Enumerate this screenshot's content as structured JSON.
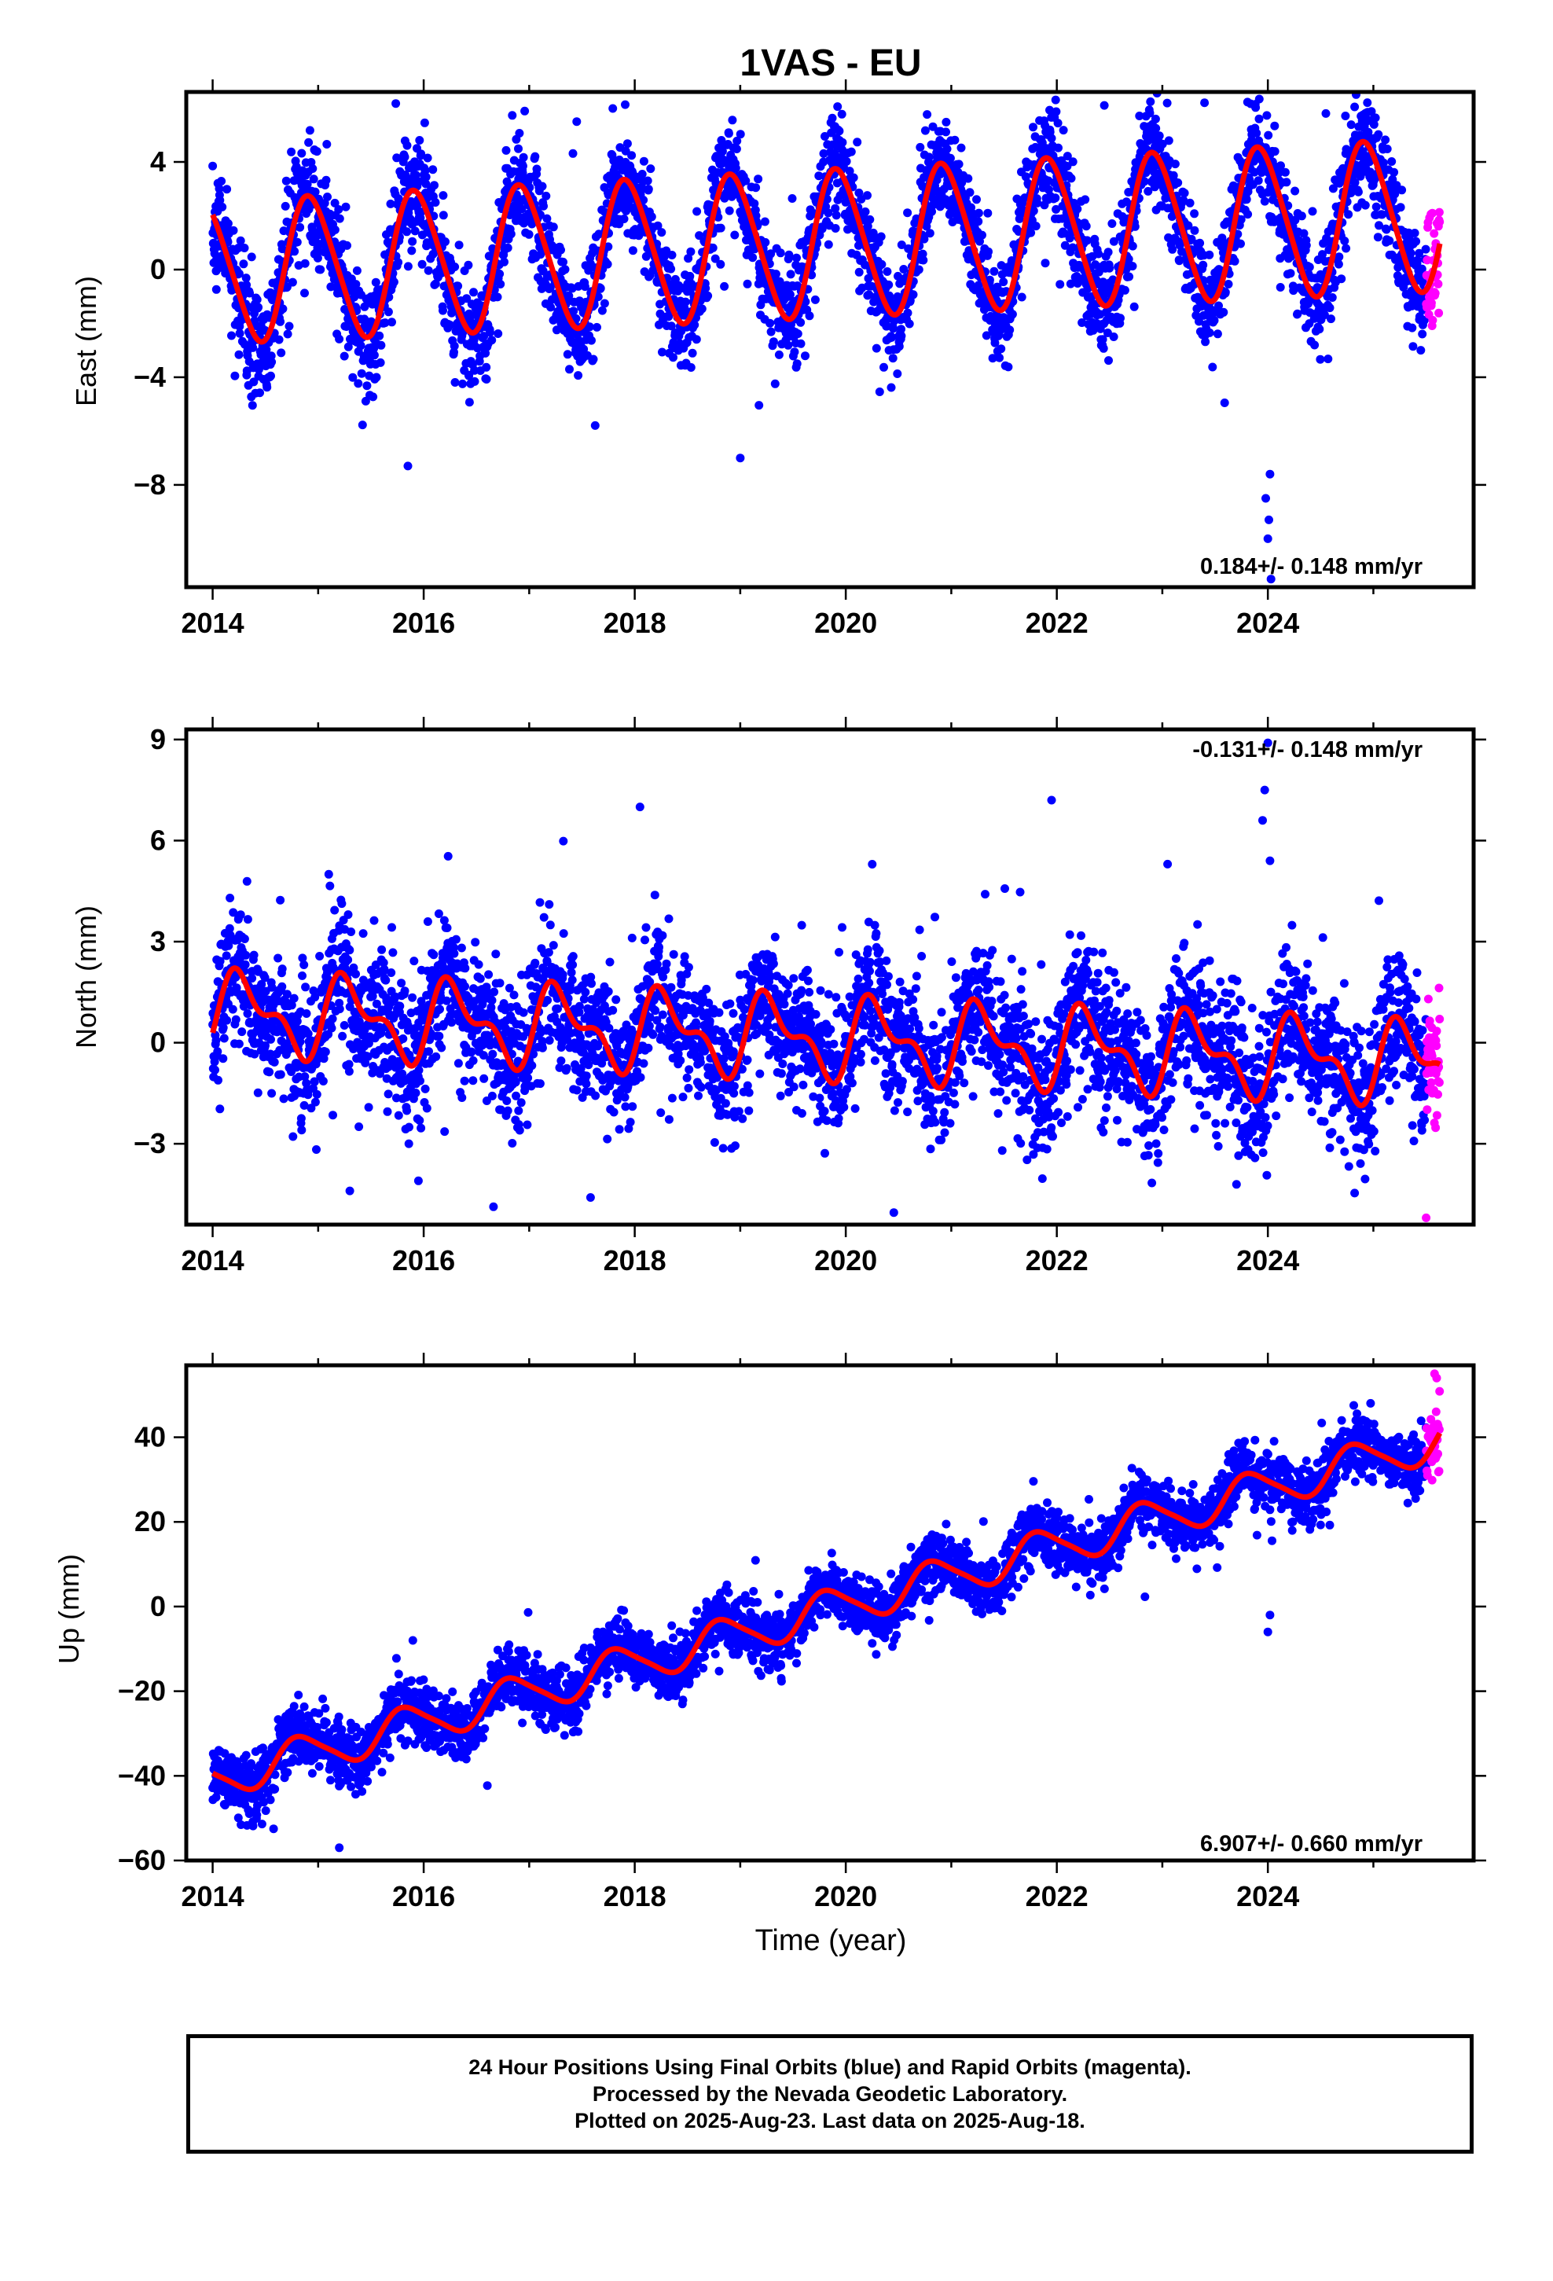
{
  "title": "1VAS - EU",
  "xlabel": "Time (year)",
  "colors": {
    "final": "#0000ff",
    "rapid": "#ff00ff",
    "model": "#ff0000",
    "axis": "#000000"
  },
  "caption": {
    "line1": "24 Hour Positions Using Final Orbits (blue) and Rapid Orbits (magenta).",
    "line2": "Processed by the Nevada Geodetic Laboratory.",
    "line3": "Plotted on 2025-Aug-23. Last data on 2025-Aug-18."
  },
  "chart_data": [
    {
      "type": "scatter",
      "component": "east",
      "ylabel": "East (mm)",
      "xlim": [
        2013.75,
        2025.95
      ],
      "ylim": [
        -11.8,
        6.6
      ],
      "xticks": [
        2014,
        2016,
        2018,
        2020,
        2022,
        2024
      ],
      "xtick_labels": [
        "2014",
        "2016",
        "2018",
        "2020",
        "2022",
        "2024"
      ],
      "yticks": [
        4,
        0,
        -4,
        -8
      ],
      "ytick_labels": [
        "4",
        "0",
        "−4",
        "−8"
      ],
      "rate_text": "0.184+/- 0.148 mm/yr",
      "rate_position": "bottom-right",
      "data_span": [
        2014.0,
        2025.63
      ],
      "rapid_start": 2025.5,
      "model": {
        "offset": -0.1,
        "rate": 0.184,
        "annual_amp": [
          2.6,
          2.8
        ],
        "annual_phase": 2.0,
        "semiannual_amp": 0.3,
        "noise_sd": 1.0
      },
      "outliers": [
        {
          "x": 2015.85,
          "y": -7.3
        },
        {
          "x": 2019.0,
          "y": -7.0
        },
        {
          "x": 2024.0,
          "y": -10.0
        },
        {
          "x": 2024.01,
          "y": -9.3
        },
        {
          "x": 2023.98,
          "y": -8.5
        },
        {
          "x": 2024.02,
          "y": -7.6
        },
        {
          "x": 2024.03,
          "y": -11.5
        },
        {
          "x": 2023.4,
          "y": 6.2
        },
        {
          "x": 2022.45,
          "y": 6.1
        },
        {
          "x": 2024.55,
          "y": 5.8
        },
        {
          "x": 2017.45,
          "y": 5.5
        }
      ]
    },
    {
      "type": "scatter",
      "component": "north",
      "ylabel": "North (mm)",
      "xlim": [
        2013.75,
        2025.95
      ],
      "ylim": [
        -5.4,
        9.3
      ],
      "xticks": [
        2014,
        2016,
        2018,
        2020,
        2022,
        2024
      ],
      "xtick_labels": [
        "2014",
        "2016",
        "2018",
        "2020",
        "2022",
        "2024"
      ],
      "yticks": [
        9,
        6,
        3,
        0,
        -3
      ],
      "ytick_labels": [
        "9",
        "6",
        "3",
        "0",
        "−3"
      ],
      "rate_text": "-0.131+/- 0.148 mm/yr",
      "rate_position": "top-right",
      "data_span": [
        2014.0,
        2025.63
      ],
      "rapid_start": 2025.5,
      "model": {
        "offset": 0.9,
        "rate": -0.131,
        "annual_amp": [
          1.0,
          1.0
        ],
        "annual_phase": -0.3,
        "semiannual_amp": 0.55,
        "noise_sd": 1.0
      },
      "outliers": [
        {
          "x": 2018.05,
          "y": 7.0
        },
        {
          "x": 2021.95,
          "y": 7.2
        },
        {
          "x": 2024.0,
          "y": 8.9
        },
        {
          "x": 2023.97,
          "y": 7.5
        },
        {
          "x": 2023.95,
          "y": 6.6
        },
        {
          "x": 2024.02,
          "y": 5.4
        },
        {
          "x": 2023.05,
          "y": 5.3
        },
        {
          "x": 2015.1,
          "y": 5.0
        },
        {
          "x": 2025.5,
          "y": -5.2
        },
        {
          "x": 2015.3,
          "y": -4.4
        },
        {
          "x": 2015.95,
          "y": -4.1
        }
      ]
    },
    {
      "type": "scatter",
      "component": "up",
      "ylabel": "Up (mm)",
      "xlim": [
        2013.75,
        2025.95
      ],
      "ylim": [
        -60,
        57
      ],
      "xticks": [
        2014,
        2016,
        2018,
        2020,
        2022,
        2024
      ],
      "xtick_labels": [
        "2014",
        "2016",
        "2018",
        "2020",
        "2022",
        "2024"
      ],
      "yticks": [
        40,
        20,
        0,
        -20,
        -40,
        -60
      ],
      "ytick_labels": [
        "40",
        "20",
        "0",
        "−20",
        "−40",
        "−60"
      ],
      "rate_text": "6.907+/- 0.660 mm/yr",
      "rate_position": "bottom-right",
      "data_span": [
        2014.0,
        2025.63
      ],
      "rapid_start": 2025.5,
      "model": {
        "offset": -41.0,
        "rate": 6.907,
        "annual_amp": [
          4.5,
          4.5
        ],
        "annual_phase": 2.6,
        "semiannual_amp": 0.8,
        "noise_sd": 3.5
      },
      "outliers": [
        {
          "x": 2015.2,
          "y": -57.0
        },
        {
          "x": 2024.0,
          "y": -6.0
        },
        {
          "x": 2024.02,
          "y": -2.0
        },
        {
          "x": 2025.58,
          "y": 55.0
        },
        {
          "x": 2025.6,
          "y": 54.0
        }
      ]
    }
  ]
}
